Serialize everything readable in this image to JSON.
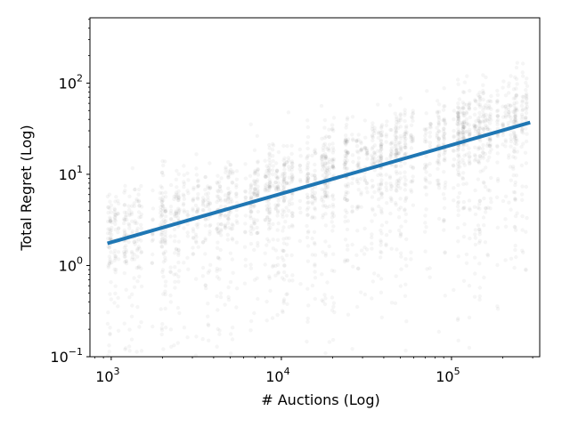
{
  "chart_data": {
    "type": "scatter",
    "title": "",
    "xlabel": "# Auctions (Log)",
    "ylabel": "Total Regret (Log)",
    "x_scale": "log",
    "y_scale": "log",
    "xlim": [
      750,
      330000
    ],
    "ylim": [
      0.1,
      520
    ],
    "grid": false,
    "x_ticks": [
      {
        "value": 1000,
        "base": "10",
        "exp": "3"
      },
      {
        "value": 10000,
        "base": "10",
        "exp": "4"
      },
      {
        "value": 100000,
        "base": "10",
        "exp": "5"
      }
    ],
    "y_ticks": [
      {
        "value": 0.1,
        "base": "10",
        "exp": "−1"
      },
      {
        "value": 1,
        "base": "10",
        "exp": "0"
      },
      {
        "value": 10,
        "base": "10",
        "exp": "1"
      },
      {
        "value": 100,
        "base": "10",
        "exp": "2"
      }
    ],
    "scatter": {
      "color": "#000000",
      "opacity": 0.04,
      "x_range": [
        950,
        290000
      ],
      "approx_point_count": 2600,
      "note_trend": "cloud follows fit line, median ~1.3x fit, wide downward spread"
    },
    "fit_line": {
      "color": "#1f77b4",
      "points": [
        [
          950,
          1.75
        ],
        [
          290000,
          37
        ]
      ]
    }
  }
}
